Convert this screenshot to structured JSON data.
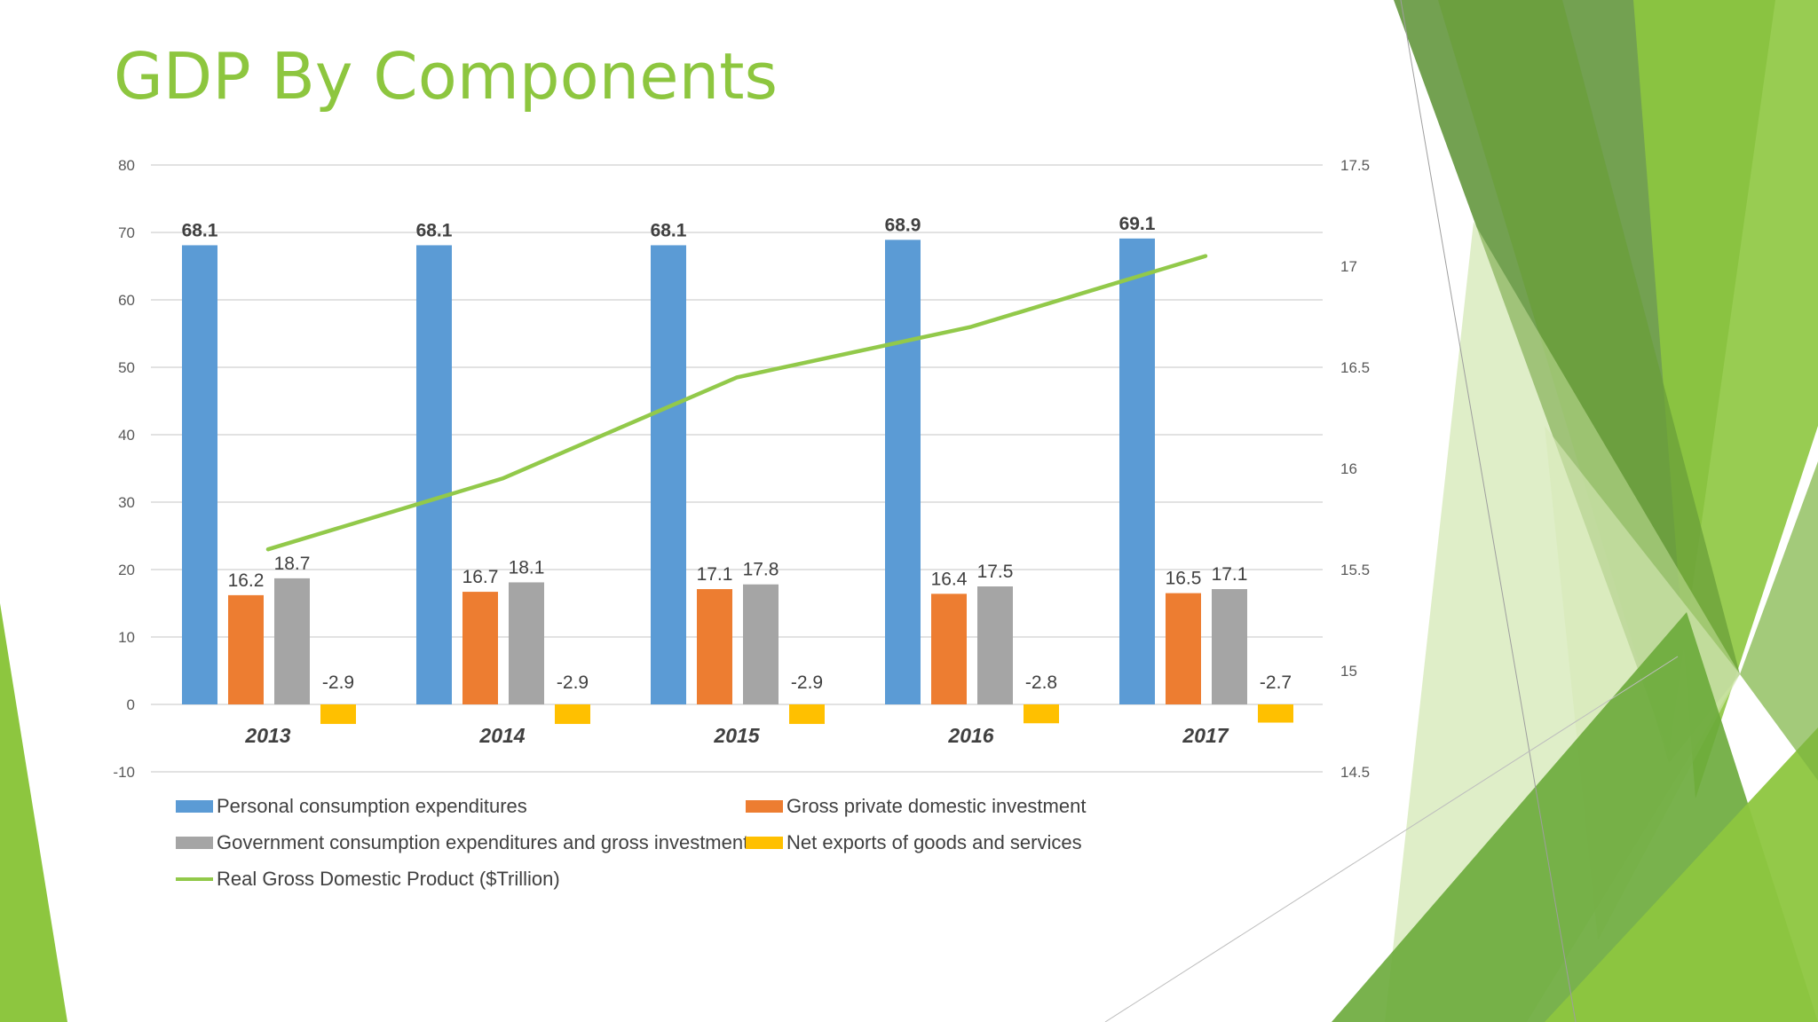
{
  "slide": {
    "title": "GDP By Components"
  },
  "colors": {
    "title": "#8dc63f",
    "personal": "#5b9bd5",
    "investment": "#ed7d31",
    "government": "#a5a5a5",
    "net_exports": "#ffc000",
    "real_gdp": "#92c94a",
    "gridline": "#d9d9d9",
    "axis_text": "#595959"
  },
  "chart_data": {
    "type": "bar",
    "title": "",
    "categories": [
      "2013",
      "2014",
      "2015",
      "2016",
      "2017"
    ],
    "series": [
      {
        "name": "Personal consumption expenditures",
        "values": [
          68.1,
          68.1,
          68.1,
          68.9,
          69.1
        ],
        "labels": [
          "68.1",
          "68.1",
          "68.1",
          "68.9",
          "69.1"
        ],
        "bold_labels": true
      },
      {
        "name": "Gross private domestic investment",
        "values": [
          16.2,
          16.7,
          17.1,
          16.4,
          16.5
        ],
        "labels": [
          "16.2",
          "16.7",
          "17.1",
          "16.4",
          "16.5"
        ],
        "bold_labels": false
      },
      {
        "name": "Government consumption expenditures and gross investment",
        "values": [
          18.7,
          18.1,
          17.8,
          17.5,
          17.1
        ],
        "labels": [
          "18.7",
          "18.1",
          "17.8",
          "17.5",
          "17.1"
        ],
        "bold_labels": false
      },
      {
        "name": "Net exports of goods and services",
        "values": [
          -2.9,
          -2.9,
          -2.9,
          -2.8,
          -2.7
        ],
        "labels": [
          "-2.9",
          "-2.9",
          "-2.9",
          "-2.8",
          "-2.7"
        ],
        "bold_labels": false
      }
    ],
    "line_series": {
      "name": "Real Gross Domestic Product ($Trillion)",
      "axis": "secondary",
      "values": [
        15.6,
        15.95,
        16.45,
        16.7,
        17.05
      ]
    },
    "y_primary": {
      "range": [
        -10,
        80
      ],
      "ticks": [
        "80",
        "70",
        "60",
        "50",
        "40",
        "30",
        "20",
        "10",
        "0",
        "-10"
      ]
    },
    "y_secondary": {
      "range": [
        14.5,
        17.5
      ],
      "ticks": [
        "17.5",
        "17",
        "16.5",
        "16",
        "15.5",
        "15",
        "14.5"
      ]
    },
    "xlabel": "",
    "ylabel": "",
    "grid": true,
    "legend_position": "bottom"
  }
}
